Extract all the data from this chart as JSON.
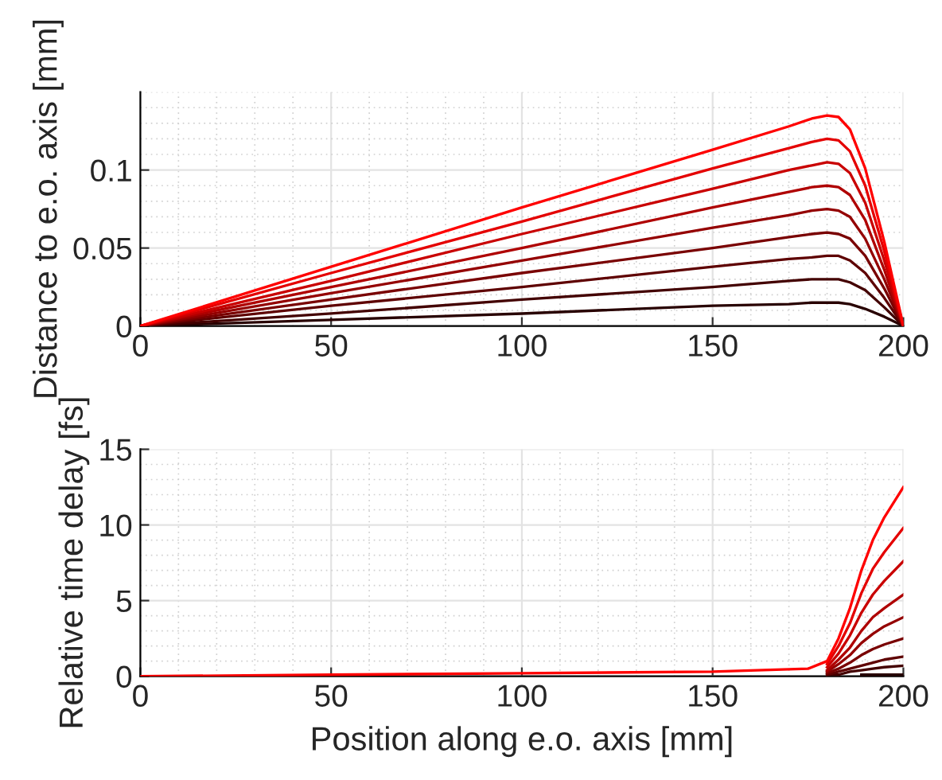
{
  "chart_data": [
    {
      "type": "line",
      "ylabel": "Distance to e.o. axis [mm]",
      "xlim": [
        0,
        200
      ],
      "xticks": [
        0,
        50,
        100,
        150,
        200
      ],
      "ylim": [
        0,
        0.15
      ],
      "yticks": [
        0,
        0.05,
        0.1
      ],
      "grid": true,
      "x": [
        0,
        50,
        100,
        150,
        170,
        176,
        180,
        183,
        186,
        190,
        195,
        200
      ],
      "series": [
        {
          "color": "#280000",
          "values": [
            0,
            0.004,
            0.008,
            0.013,
            0.014,
            0.015,
            0.015,
            0.015,
            0.014,
            0.011,
            0.006,
            0
          ]
        },
        {
          "color": "#430000",
          "values": [
            0,
            0.008,
            0.017,
            0.025,
            0.029,
            0.03,
            0.03,
            0.03,
            0.028,
            0.023,
            0.012,
            0
          ]
        },
        {
          "color": "#5e0000",
          "values": [
            0,
            0.013,
            0.025,
            0.038,
            0.043,
            0.044,
            0.045,
            0.045,
            0.042,
            0.034,
            0.018,
            0
          ]
        },
        {
          "color": "#790000",
          "values": [
            0,
            0.017,
            0.034,
            0.05,
            0.057,
            0.059,
            0.06,
            0.059,
            0.056,
            0.045,
            0.024,
            0
          ]
        },
        {
          "color": "#940000",
          "values": [
            0,
            0.021,
            0.042,
            0.063,
            0.071,
            0.074,
            0.075,
            0.074,
            0.07,
            0.056,
            0.03,
            0
          ]
        },
        {
          "color": "#af0000",
          "values": [
            0,
            0.025,
            0.05,
            0.076,
            0.086,
            0.089,
            0.09,
            0.089,
            0.084,
            0.068,
            0.036,
            0
          ]
        },
        {
          "color": "#c90000",
          "values": [
            0,
            0.029,
            0.059,
            0.088,
            0.1,
            0.103,
            0.105,
            0.104,
            0.098,
            0.079,
            0.042,
            0
          ]
        },
        {
          "color": "#e40000",
          "values": [
            0,
            0.034,
            0.067,
            0.101,
            0.114,
            0.118,
            0.12,
            0.119,
            0.112,
            0.09,
            0.048,
            0
          ]
        },
        {
          "color": "#ff0000",
          "values": [
            0,
            0.038,
            0.076,
            0.113,
            0.128,
            0.133,
            0.135,
            0.134,
            0.126,
            0.101,
            0.054,
            0
          ]
        }
      ]
    },
    {
      "type": "line",
      "xlabel": "Position along e.o. axis [mm]",
      "ylabel": "Relative time delay [fs]",
      "xlim": [
        0,
        200
      ],
      "xticks": [
        0,
        50,
        100,
        150,
        200
      ],
      "ylim": [
        0,
        15
      ],
      "yticks": [
        0,
        5,
        10,
        15
      ],
      "grid": true,
      "x": [
        0,
        50,
        100,
        150,
        175,
        180,
        183,
        186,
        189,
        192,
        195,
        200
      ],
      "series": [
        {
          "color": "#280000",
          "values": [
            null,
            null,
            null,
            null,
            null,
            null,
            null,
            null,
            0.1,
            0.1,
            0.1,
            0.1
          ]
        },
        {
          "color": "#430000",
          "values": [
            null,
            null,
            null,
            null,
            null,
            0.1,
            0.1,
            0.3,
            0.4,
            0.5,
            0.6,
            0.7
          ]
        },
        {
          "color": "#5e0000",
          "values": [
            null,
            null,
            null,
            null,
            null,
            0.1,
            0.3,
            0.5,
            0.7,
            0.9,
            1.1,
            1.3
          ]
        },
        {
          "color": "#790000",
          "values": [
            null,
            null,
            null,
            null,
            null,
            0.2,
            0.5,
            0.9,
            1.4,
            1.8,
            2.1,
            2.5
          ]
        },
        {
          "color": "#940000",
          "values": [
            null,
            null,
            null,
            null,
            null,
            0.3,
            0.8,
            1.4,
            2.2,
            2.8,
            3.3,
            3.9
          ]
        },
        {
          "color": "#af0000",
          "values": [
            null,
            null,
            null,
            null,
            null,
            0.4,
            1.1,
            1.9,
            3,
            3.9,
            4.5,
            5.4
          ]
        },
        {
          "color": "#c90000",
          "values": [
            null,
            null,
            null,
            null,
            null,
            0.6,
            1.5,
            2.7,
            4.2,
            5.4,
            6.3,
            7.6
          ]
        },
        {
          "color": "#e40000",
          "values": [
            null,
            null,
            null,
            null,
            null,
            0.8,
            2,
            3.5,
            5.5,
            7.1,
            8.2,
            9.8
          ]
        },
        {
          "color": "#ff0000",
          "values": [
            0,
            0.1,
            0.2,
            0.3,
            0.5,
            1,
            2.5,
            4.5,
            7,
            9,
            10.5,
            12.5
          ]
        }
      ]
    }
  ]
}
